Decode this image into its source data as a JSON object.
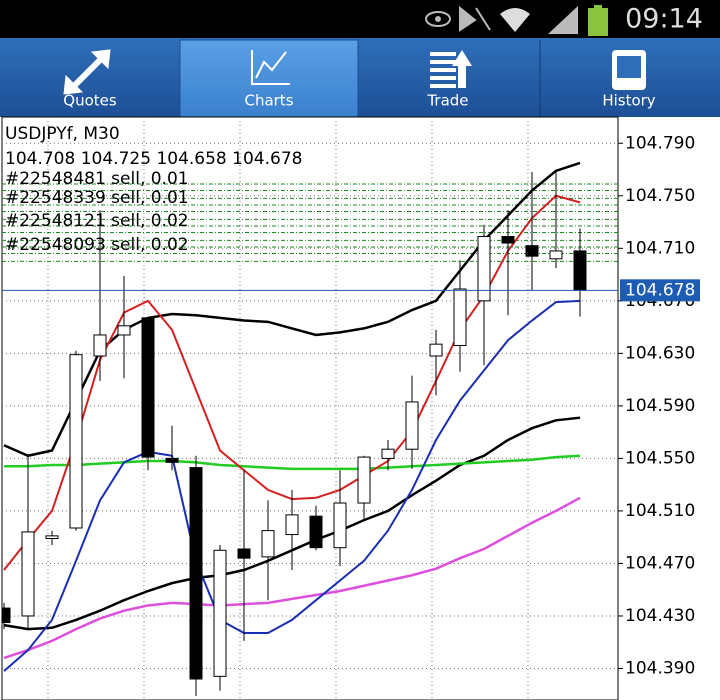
{
  "status_bar": {
    "time": "09:14"
  },
  "tabs": [
    {
      "label": "Quotes"
    },
    {
      "label": "Charts"
    },
    {
      "label": "Trade"
    },
    {
      "label": "History"
    }
  ],
  "chart_data": {
    "type": "candlestick",
    "title": "USDJPYf, M30",
    "orders": [
      "#22548481 sell, 0.01",
      "#22548339 sell, 0.01",
      "#22548121 sell, 0.02",
      "#22548093 sell, 0.02"
    ],
    "order_levels": [
      104.759,
      104.754,
      104.748,
      104.743,
      104.738,
      104.732,
      104.727,
      104.722,
      104.716,
      104.711,
      104.706,
      104.7
    ],
    "open": [
      104.436,
      104.43,
      104.489,
      104.497,
      104.628,
      104.644,
      104.657,
      104.55,
      104.543,
      104.384,
      104.481,
      104.475,
      104.492,
      104.506,
      104.482,
      104.516,
      104.55,
      104.557,
      104.628,
      104.636,
      104.67,
      104.719,
      104.712,
      104.702,
      104.708
    ],
    "high": [
      104.44,
      104.552,
      104.495,
      104.632,
      104.739,
      104.689,
      104.657,
      104.575,
      104.552,
      104.484,
      104.541,
      104.518,
      104.526,
      104.514,
      104.541,
      104.552,
      104.564,
      104.613,
      104.648,
      104.701,
      104.728,
      104.739,
      104.768,
      104.769,
      104.725
    ],
    "low": [
      104.42,
      104.419,
      104.484,
      104.495,
      104.609,
      104.611,
      104.541,
      104.541,
      104.369,
      104.373,
      104.411,
      104.442,
      104.465,
      104.48,
      104.468,
      104.504,
      104.541,
      104.542,
      104.598,
      104.616,
      104.621,
      104.659,
      104.678,
      104.695,
      104.658
    ],
    "close": [
      104.425,
      104.494,
      104.491,
      104.629,
      104.644,
      104.651,
      104.551,
      104.547,
      104.382,
      104.48,
      104.474,
      104.495,
      104.507,
      104.482,
      104.516,
      104.551,
      104.557,
      104.593,
      104.637,
      104.679,
      104.719,
      104.714,
      104.704,
      104.708,
      104.678
    ],
    "up_color": "#ffffff",
    "down_color": "#000000",
    "series": [
      {
        "color": "#000000",
        "values": [
          104.56,
          104.552,
          104.556,
          104.594,
          104.632,
          104.648,
          104.657,
          104.66,
          104.659,
          104.657,
          104.655,
          104.654,
          104.649,
          104.644,
          104.646,
          104.649,
          104.654,
          104.663,
          104.67,
          104.693,
          104.716,
          104.735,
          104.754,
          104.769,
          104.775
        ]
      },
      {
        "color": "#000000",
        "values": [
          104.423,
          104.42,
          104.421,
          104.427,
          104.434,
          104.442,
          104.449,
          104.455,
          104.459,
          104.461,
          104.465,
          104.472,
          104.48,
          104.488,
          104.495,
          104.503,
          104.51,
          104.522,
          104.533,
          104.545,
          104.552,
          104.564,
          104.573,
          104.579,
          104.581
        ]
      },
      {
        "color": "#dd4fdd",
        "values": [
          104.398,
          104.404,
          104.411,
          104.42,
          104.428,
          104.434,
          104.438,
          104.44,
          104.439,
          104.438,
          104.439,
          104.44,
          104.443,
          104.446,
          104.449,
          104.453,
          104.457,
          104.461,
          104.466,
          104.474,
          104.481,
          104.491,
          104.501,
          104.51,
          104.52
        ]
      },
      {
        "color": "#22cc22",
        "values": [
          104.544,
          104.544,
          104.545,
          104.545,
          104.546,
          104.547,
          104.548,
          104.548,
          104.547,
          104.545,
          104.544,
          104.543,
          104.542,
          104.542,
          104.542,
          104.542,
          104.543,
          104.544,
          104.545,
          104.546,
          104.547,
          104.548,
          104.549,
          104.551,
          104.552
        ]
      },
      {
        "color": "#1a2eb5",
        "values": [
          104.388,
          104.404,
          104.427,
          104.472,
          104.518,
          104.547,
          104.555,
          104.552,
          104.472,
          104.427,
          104.417,
          104.417,
          104.427,
          104.442,
          104.457,
          104.472,
          104.495,
          104.526,
          104.564,
          104.594,
          104.617,
          104.64,
          104.655,
          104.669,
          104.67
        ]
      },
      {
        "color": "#d42020",
        "values": [
          104.465,
          104.488,
          104.51,
          104.564,
          104.625,
          104.661,
          104.67,
          104.648,
          104.602,
          104.556,
          104.541,
          104.526,
          104.519,
          104.52,
          104.526,
          104.537,
          104.548,
          104.571,
          104.609,
          104.648,
          104.674,
          104.708,
          104.733,
          104.75,
          104.745
        ]
      }
    ],
    "ylim": [
      104.366,
      104.81
    ],
    "yticks": [
      {
        "value": 104.79,
        "label": "104.790"
      },
      {
        "value": 104.75,
        "label": "104.750"
      },
      {
        "value": 104.71,
        "label": "104.710"
      },
      {
        "value": 104.67,
        "label": "104.670"
      },
      {
        "value": 104.63,
        "label": "104.630"
      },
      {
        "value": 104.59,
        "label": "104.590"
      },
      {
        "value": 104.55,
        "label": "104.550"
      },
      {
        "value": 104.51,
        "label": "104.510"
      },
      {
        "value": 104.47,
        "label": "104.470"
      },
      {
        "value": 104.43,
        "label": "104.430"
      },
      {
        "value": 104.39,
        "label": "104.390"
      }
    ],
    "grid": true
  }
}
